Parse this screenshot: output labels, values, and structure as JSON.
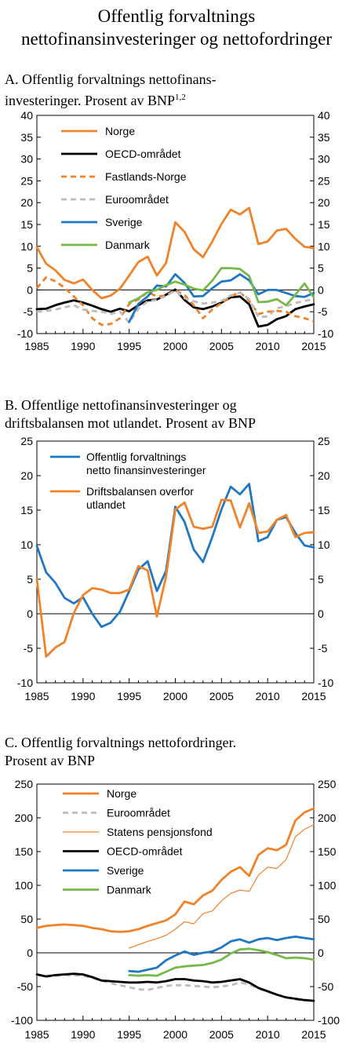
{
  "title": {
    "line1": "Offentlig forvaltnings",
    "line2": "nettofinansinvesteringer og nettofordringer"
  },
  "colors": {
    "orange": "#f0832a",
    "black": "#000000",
    "grey": "#bdbdbd",
    "blue": "#1f78c1",
    "green": "#77b84b",
    "axis": "#000000"
  },
  "chart_data": [
    {
      "type": "line",
      "panel": "A",
      "title_line1": "A.  Offentlig forvaltnings nettofinans-",
      "title_line2": "investeringer. Prosent av BNP",
      "title_sup": "1,2",
      "xlim": [
        1985,
        2015
      ],
      "ylim": [
        -10,
        40
      ],
      "yticks": [
        -10,
        -5,
        0,
        5,
        10,
        15,
        20,
        25,
        30,
        35,
        40
      ],
      "xticks": [
        1985,
        1990,
        1995,
        2000,
        2005,
        2010,
        2015
      ],
      "legend_position": "top-left",
      "series": [
        {
          "name": "Norge",
          "color": "#f0832a",
          "dash": "solid",
          "x": [
            1985,
            1986,
            1987,
            1988,
            1989,
            1990,
            1991,
            1992,
            1993,
            1994,
            1995,
            1996,
            1997,
            1998,
            1999,
            2000,
            2001,
            2002,
            2003,
            2004,
            2005,
            2006,
            2007,
            2008,
            2009,
            2010,
            2011,
            2012,
            2013,
            2014,
            2015
          ],
          "y": [
            9.8,
            6,
            4.5,
            2.3,
            1.5,
            2.4,
            0,
            -1.9,
            -1.3,
            0.3,
            3.3,
            6.4,
            7.6,
            3.3,
            6.2,
            15.5,
            13.3,
            9.3,
            7.5,
            11.1,
            15.1,
            18.4,
            17.3,
            18.8,
            10.5,
            11.1,
            13.6,
            14,
            11.7,
            9.9,
            9.6
          ]
        },
        {
          "name": "OECD-området",
          "color": "#000000",
          "dash": "solid",
          "x": [
            1985,
            1986,
            1987,
            1988,
            1989,
            1990,
            1991,
            1992,
            1993,
            1994,
            1995,
            1996,
            1997,
            1998,
            1999,
            2000,
            2001,
            2002,
            2003,
            2004,
            2005,
            2006,
            2007,
            2008,
            2009,
            2010,
            2011,
            2012,
            2013,
            2014,
            2015
          ],
          "y": [
            -4.4,
            -4.3,
            -3.5,
            -2.9,
            -2.4,
            -2.9,
            -3.6,
            -4.4,
            -5.0,
            -4.3,
            -4.9,
            -3.5,
            -2.4,
            -2.2,
            -1.1,
            0.1,
            -2.3,
            -4.0,
            -4.4,
            -3.8,
            -2.9,
            -1.7,
            -1.5,
            -3.3,
            -8.4,
            -8.0,
            -6.7,
            -6.0,
            -4.4,
            -3.8,
            -3.3
          ]
        },
        {
          "name": "Fastlands-Norge",
          "color": "#f0832a",
          "dash": "dashed",
          "x": [
            1985,
            1986,
            1987,
            1988,
            1989,
            1990,
            1991,
            1992,
            1993,
            1994,
            1995,
            1996,
            1997,
            1998,
            1999,
            2000,
            2001,
            2002,
            2003,
            2004,
            2005,
            2006,
            2007,
            2008,
            2009,
            2010,
            2011,
            2012,
            2013,
            2014,
            2015
          ],
          "y": [
            0.4,
            2.9,
            2.0,
            0.5,
            -1.5,
            -3.5,
            -6.5,
            -8.0,
            -7.8,
            -6.5,
            -3.2,
            -2.2,
            -0.5,
            -1.5,
            -1.3,
            0,
            -1.2,
            -3.5,
            -6.5,
            -4.5,
            -3.0,
            -1.5,
            -0.5,
            -2.5,
            -5.5,
            -5.0,
            -4.8,
            -5.0,
            -6.0,
            -6.5,
            -7.1
          ]
        },
        {
          "name": "Euroområdet",
          "color": "#bdbdbd",
          "dash": "dashed",
          "x": [
            1985,
            1986,
            1987,
            1988,
            1989,
            1990,
            1991,
            1992,
            1993,
            1994,
            1995,
            1996,
            1997,
            1998,
            1999,
            2000,
            2001,
            2002,
            2003,
            2004,
            2005,
            2006,
            2007,
            2008,
            2009,
            2010,
            2011,
            2012,
            2013,
            2014,
            2015
          ],
          "y": [
            -5.0,
            -4.8,
            -4.5,
            -4.0,
            -3.5,
            -4.5,
            -4.8,
            -5.0,
            -5.5,
            -5.0,
            -7.5,
            -4.3,
            -2.6,
            -2.3,
            -1.4,
            -0.1,
            -1.9,
            -2.6,
            -3.1,
            -2.9,
            -2.5,
            -1.3,
            -0.6,
            -2.1,
            -6.2,
            -6.1,
            -4.2,
            -3.7,
            -3.0,
            -2.5,
            -2.1
          ]
        },
        {
          "name": "Sverige",
          "color": "#1f78c1",
          "dash": "solid",
          "x": [
            1995,
            1996,
            1997,
            1998,
            1999,
            2000,
            2001,
            2002,
            2003,
            2004,
            2005,
            2006,
            2007,
            2008,
            2009,
            2010,
            2011,
            2012,
            2013,
            2014,
            2015
          ],
          "y": [
            -7.3,
            -3.2,
            -1.5,
            1.0,
            0.8,
            3.6,
            1.6,
            -1.5,
            -1.4,
            0.4,
            1.9,
            2.2,
            3.6,
            2.2,
            -1.0,
            0,
            0,
            -0.7,
            -1.4,
            -1.6,
            -0.7
          ]
        },
        {
          "name": "Danmark",
          "color": "#77b84b",
          "dash": "solid",
          "x": [
            1995,
            1996,
            1997,
            1998,
            1999,
            2000,
            2001,
            2002,
            2003,
            2004,
            2005,
            2006,
            2007,
            2008,
            2009,
            2010,
            2011,
            2012,
            2013,
            2014,
            2015
          ],
          "y": [
            -2.9,
            -1.9,
            -0.5,
            0,
            1.1,
            1.9,
            1.2,
            0.3,
            -0.1,
            2.1,
            5.0,
            5.0,
            4.8,
            3.2,
            -2.8,
            -2.7,
            -2.1,
            -3.5,
            -1.1,
            1.5,
            -1.7
          ]
        }
      ]
    },
    {
      "type": "line",
      "panel": "B",
      "title_line1": "B.  Offentlige nettofinansinvesteringer og",
      "title_line2": "driftsbalansen mot utlandet. Prosent av BNP",
      "xlim": [
        1985,
        2015
      ],
      "ylim": [
        -10,
        25
      ],
      "yticks": [
        -10,
        -5,
        0,
        5,
        10,
        15,
        20,
        25
      ],
      "xticks": [
        1985,
        1990,
        1995,
        2000,
        2005,
        2010,
        2015
      ],
      "legend_position": "top-left",
      "series": [
        {
          "name": "Offentlig forvaltnings netto finansinvesteringer",
          "name_line1": "Offentlig forvaltnings",
          "name_line2": "netto finansinvesteringer",
          "color": "#1f78c1",
          "dash": "solid",
          "x": [
            1985,
            1986,
            1987,
            1988,
            1989,
            1990,
            1991,
            1992,
            1993,
            1994,
            1995,
            1996,
            1997,
            1998,
            1999,
            2000,
            2001,
            2002,
            2003,
            2004,
            2005,
            2006,
            2007,
            2008,
            2009,
            2010,
            2011,
            2012,
            2013,
            2014,
            2015
          ],
          "y": [
            9.8,
            6,
            4.5,
            2.3,
            1.5,
            2.4,
            0,
            -1.9,
            -1.3,
            0.3,
            3.3,
            6.4,
            7.6,
            3.3,
            6.2,
            15.5,
            13.3,
            9.3,
            7.5,
            11.1,
            15.1,
            18.4,
            17.3,
            18.8,
            10.5,
            11.1,
            13.6,
            14,
            11.7,
            9.9,
            9.6
          ]
        },
        {
          "name": "Driftsbalansen overfor utlandet",
          "name_line1": "Driftsbalansen overfor",
          "name_line2": "utlandet",
          "color": "#f0832a",
          "dash": "solid",
          "x": [
            1985,
            1986,
            1987,
            1988,
            1989,
            1990,
            1991,
            1992,
            1993,
            1994,
            1995,
            1996,
            1997,
            1998,
            1999,
            2000,
            2001,
            2002,
            2003,
            2004,
            2005,
            2006,
            2007,
            2008,
            2009,
            2010,
            2011,
            2012,
            2013,
            2014,
            2015
          ],
          "y": [
            5.0,
            -6.2,
            -4.9,
            -4.1,
            0.1,
            2.7,
            3.7,
            3.5,
            3.0,
            3.0,
            3.5,
            6.9,
            6.3,
            -0.4,
            5.4,
            15.1,
            16.1,
            12.6,
            12.3,
            12.6,
            16.5,
            16.4,
            12.5,
            16.0,
            11.7,
            11.9,
            13.6,
            14.3,
            11.1,
            11.7,
            11.8
          ]
        }
      ]
    },
    {
      "type": "line",
      "panel": "C",
      "title_line1": "C.  Offentlig forvaltnings nettofordringer.",
      "title_line2": "Prosent av BNP",
      "xlim": [
        1985,
        2015
      ],
      "ylim": [
        -100,
        250
      ],
      "yticks": [
        -100,
        -50,
        0,
        50,
        100,
        150,
        200,
        250
      ],
      "xticks": [
        1985,
        1990,
        1995,
        2000,
        2005,
        2010,
        2015
      ],
      "legend_position": "top-left",
      "series": [
        {
          "name": "Norge",
          "color": "#f0832a",
          "dash": "solid",
          "width": "thick",
          "x": [
            1985,
            1986,
            1987,
            1988,
            1989,
            1990,
            1991,
            1992,
            1993,
            1994,
            1995,
            1996,
            1997,
            1998,
            1999,
            2000,
            2001,
            2002,
            2003,
            2004,
            2005,
            2006,
            2007,
            2008,
            2009,
            2010,
            2011,
            2012,
            2013,
            2014,
            2015
          ],
          "y": [
            37,
            40,
            41,
            42,
            41,
            40,
            37,
            35,
            32,
            31,
            32,
            35,
            40,
            44,
            48,
            57,
            76,
            72,
            85,
            92,
            108,
            120,
            127,
            114,
            145,
            155,
            152,
            160,
            196,
            208,
            214
          ]
        },
        {
          "name": "Euroområdet",
          "color": "#bdbdbd",
          "dash": "dashed",
          "width": "thick",
          "x": [
            1985,
            1986,
            1987,
            1988,
            1989,
            1990,
            1991,
            1992,
            1993,
            1994,
            1995,
            1996,
            1997,
            1998,
            1999,
            2000,
            2001,
            2002,
            2003,
            2004,
            2005,
            2006,
            2007,
            2008,
            2009,
            2010,
            2011,
            2012,
            2013,
            2014,
            2015
          ],
          "y": [
            -33,
            -34,
            -34,
            -33,
            -33,
            -34,
            -37,
            -41,
            -45,
            -48,
            -51,
            -54,
            -55,
            -52,
            -49,
            -48,
            -48,
            -49,
            -50,
            -51,
            -50,
            -48,
            -44,
            -47,
            -53,
            -57,
            -62,
            -66,
            -69,
            -70,
            -71
          ]
        },
        {
          "name": "Statens pensjonsfond",
          "color": "#f0832a",
          "dash": "solid",
          "width": "thin",
          "x": [
            1995,
            1996,
            1997,
            1998,
            1999,
            2000,
            2001,
            2002,
            2003,
            2004,
            2005,
            2006,
            2007,
            2008,
            2009,
            2010,
            2011,
            2012,
            2013,
            2014,
            2015
          ],
          "y": [
            7,
            12,
            17,
            21,
            26,
            35,
            46,
            43,
            58,
            62,
            77,
            88,
            93,
            91,
            115,
            127,
            125,
            138,
            172,
            183,
            190
          ]
        },
        {
          "name": "OECD-området",
          "color": "#000000",
          "dash": "solid",
          "width": "thick",
          "x": [
            1985,
            1986,
            1987,
            1988,
            1989,
            1990,
            1991,
            1992,
            1993,
            1994,
            1995,
            1996,
            1997,
            1998,
            1999,
            2000,
            2001,
            2002,
            2003,
            2004,
            2005,
            2006,
            2007,
            2008,
            2009,
            2010,
            2011,
            2012,
            2013,
            2014,
            2015
          ],
          "y": [
            -32,
            -35,
            -33,
            -32,
            -31,
            -32,
            -36,
            -41,
            -42,
            -43,
            -44,
            -44,
            -43,
            -44,
            -42,
            -39,
            -39,
            -41,
            -42,
            -44,
            -43,
            -41,
            -39,
            -44,
            -52,
            -57,
            -62,
            -66,
            -68,
            -70,
            -71
          ]
        },
        {
          "name": "Sverige",
          "color": "#1f78c1",
          "dash": "solid",
          "width": "thick",
          "x": [
            1995,
            1996,
            1997,
            1998,
            1999,
            2000,
            2001,
            2002,
            2003,
            2004,
            2005,
            2006,
            2007,
            2008,
            2009,
            2010,
            2011,
            2012,
            2013,
            2014,
            2015
          ],
          "y": [
            -27,
            -28,
            -25,
            -22,
            -11,
            -4,
            2,
            -3,
            0,
            2,
            8,
            17,
            20,
            15,
            20,
            22,
            19,
            22,
            24,
            22,
            20
          ]
        },
        {
          "name": "Danmark",
          "color": "#77b84b",
          "dash": "solid",
          "width": "thick",
          "x": [
            1995,
            1996,
            1997,
            1998,
            1999,
            2000,
            2001,
            2002,
            2003,
            2004,
            2005,
            2006,
            2007,
            2008,
            2009,
            2010,
            2011,
            2012,
            2013,
            2014,
            2015
          ],
          "y": [
            -33,
            -34,
            -33,
            -34,
            -28,
            -22,
            -20,
            -19,
            -18,
            -15,
            -10,
            -1,
            5,
            6,
            4,
            1,
            -3,
            -8,
            -7,
            -8,
            -10
          ]
        }
      ]
    }
  ]
}
